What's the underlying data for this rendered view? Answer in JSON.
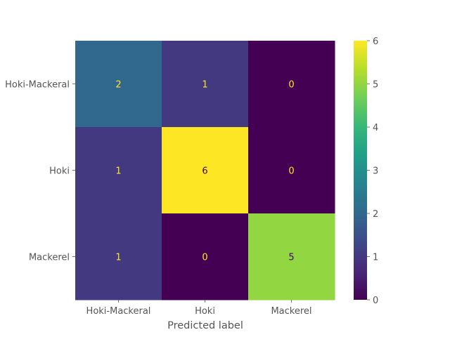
{
  "chart_data": {
    "type": "heatmap",
    "title": "",
    "xlabel": "Predicted label",
    "ylabel": "",
    "row_labels": [
      "Hoki-Mackeral",
      "Hoki",
      "Mackerel"
    ],
    "col_labels": [
      "Hoki-Mackeral",
      "Hoki",
      "Mackerel"
    ],
    "matrix": [
      [
        2,
        1,
        0
      ],
      [
        1,
        6,
        0
      ],
      [
        1,
        0,
        5
      ]
    ],
    "colormap": "viridis",
    "colorbar": {
      "vmin": 0,
      "vmax": 6,
      "ticks": [
        "0",
        "1",
        "2",
        "3",
        "4",
        "5",
        "6"
      ]
    },
    "grid": false,
    "text_colors": {
      "on_dark": "#fde725",
      "on_light": "#440154"
    }
  }
}
